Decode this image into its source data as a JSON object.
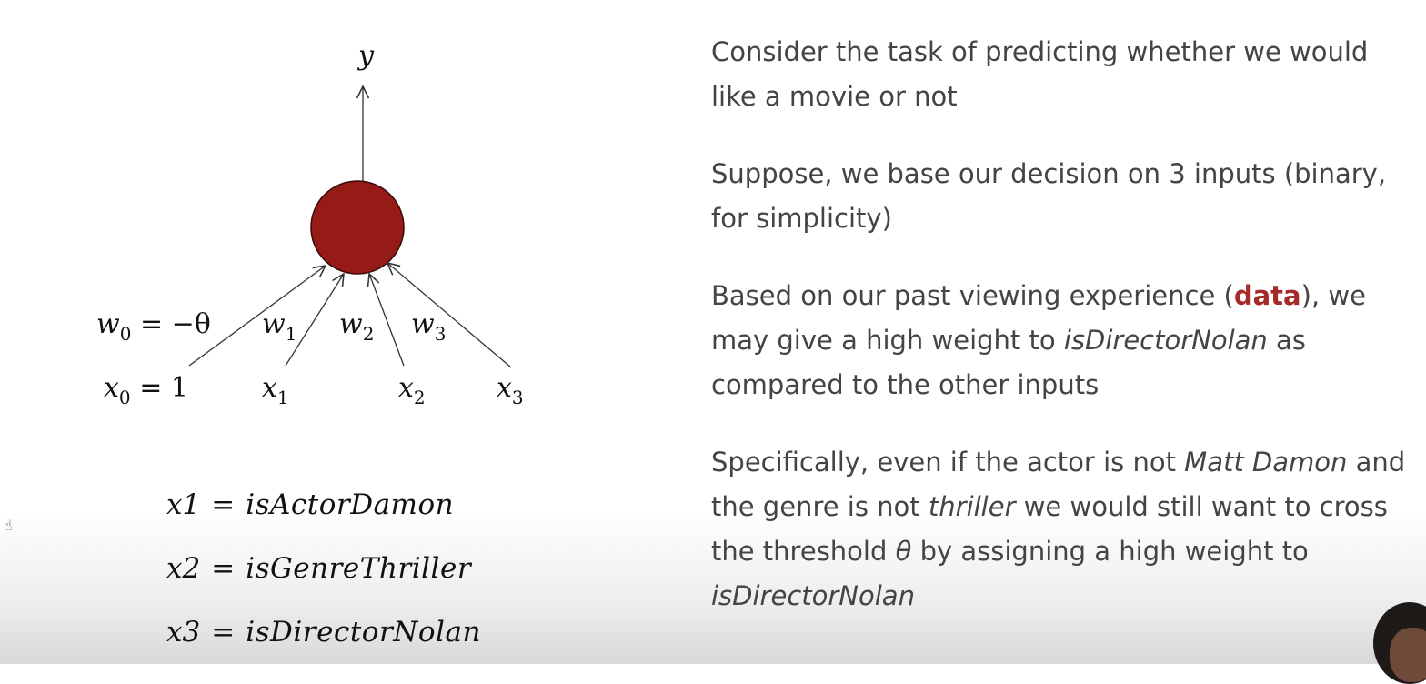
{
  "diagram": {
    "output_label": "y",
    "neuron_color": "#961a16",
    "weights": [
      {
        "w": "w",
        "sub": "0",
        "suffix": " = −θ"
      },
      {
        "w": "w",
        "sub": "1",
        "suffix": ""
      },
      {
        "w": "w",
        "sub": "2",
        "suffix": ""
      },
      {
        "w": "w",
        "sub": "3",
        "suffix": ""
      }
    ],
    "inputs": [
      {
        "x": "x",
        "sub": "0",
        "suffix": " = 1"
      },
      {
        "x": "x",
        "sub": "1",
        "suffix": ""
      },
      {
        "x": "x",
        "sub": "2",
        "suffix": ""
      },
      {
        "x": "x",
        "sub": "3",
        "suffix": ""
      }
    ]
  },
  "definitions": [
    {
      "var": "x1",
      "eq": "=",
      "val": "isActorDamon"
    },
    {
      "var": "x2",
      "eq": "=",
      "val": "isGenreThriller"
    },
    {
      "var": "x3",
      "eq": "=",
      "val": "isDirectorNolan"
    }
  ],
  "text": {
    "p1": "Consider the task of predicting whether we would like a movie or not",
    "p2": "Suppose, we base our decision on 3 inputs (binary, for simplicity)",
    "p3_a": "Based on our past viewing experience (",
    "p3_data": "data",
    "p3_b": "), we may give a high weight to ",
    "p3_it": "isDirectorNolan",
    "p3_c": " as compared to the other inputs",
    "p4_a": "Specifically, even if the actor is not ",
    "p4_it1": "Matt Damon",
    "p4_b": " and the genre is not ",
    "p4_it2": "thriller",
    "p4_c": " we would still want to cross the threshold ",
    "p4_theta": "θ",
    "p4_d": " by assigning a high weight to ",
    "p4_it3": "isDirectorNolan"
  },
  "accent_color": "#a52a2a"
}
